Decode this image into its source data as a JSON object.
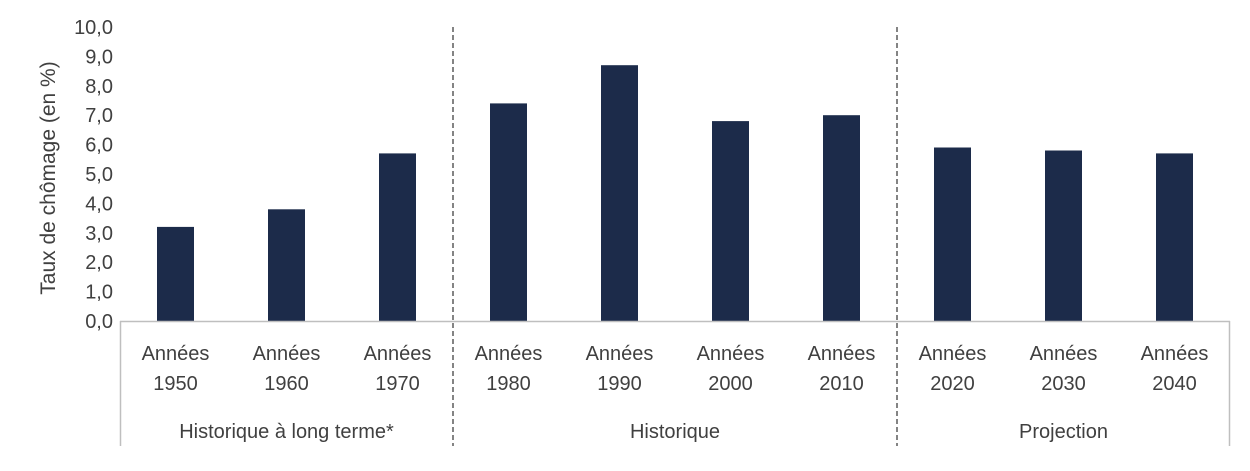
{
  "chart_data": {
    "type": "bar",
    "title": "",
    "ylabel": "Taux de chômage (en %)",
    "ylim": [
      0,
      10
    ],
    "y_ticks": [
      "0,0",
      "1,0",
      "2,0",
      "3,0",
      "4,0",
      "5,0",
      "6,0",
      "7,0",
      "8,0",
      "9,0",
      "10,0"
    ],
    "grid": false,
    "bar_color": "#1c2b4a",
    "categories": [
      {
        "line1": "Années",
        "line2": "1950"
      },
      {
        "line1": "Années",
        "line2": "1960"
      },
      {
        "line1": "Années",
        "line2": "1970"
      },
      {
        "line1": "Années",
        "line2": "1980"
      },
      {
        "line1": "Années",
        "line2": "1990"
      },
      {
        "line1": "Années",
        "line2": "2000"
      },
      {
        "line1": "Années",
        "line2": "2010"
      },
      {
        "line1": "Années",
        "line2": "2020"
      },
      {
        "line1": "Années",
        "line2": "2030"
      },
      {
        "line1": "Années",
        "line2": "2040"
      }
    ],
    "values": [
      3.2,
      3.8,
      5.7,
      7.4,
      8.7,
      6.8,
      7.0,
      5.9,
      5.8,
      5.7
    ],
    "groups": [
      {
        "label": "Historique à long terme*",
        "start": 0,
        "count": 3
      },
      {
        "label": "Historique",
        "start": 3,
        "count": 4
      },
      {
        "label": "Projection",
        "start": 7,
        "count": 3
      }
    ]
  }
}
